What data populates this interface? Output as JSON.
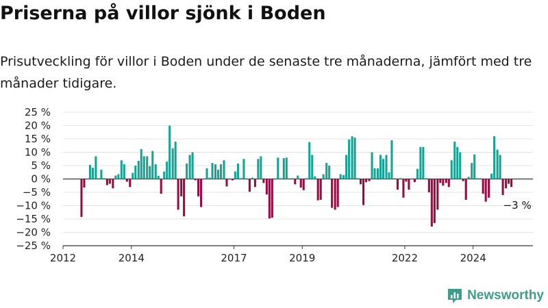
{
  "title": "Priserna på villor sjönk i Boden",
  "subtitle": "Prisutveckling för villor i Boden under de senaste tre månaderna, jämfört med tre månader tidigare.",
  "brand": {
    "name": "Newsworthy",
    "color": "#3f9c8c"
  },
  "chart_data": {
    "type": "bar",
    "ylim": [
      -25,
      25
    ],
    "yticks": [
      25,
      20,
      15,
      10,
      5,
      0,
      -5,
      -10,
      -15,
      -20,
      -25
    ],
    "ytick_labels": [
      "25 %",
      "20 %",
      "15 %",
      "10 %",
      "5 %",
      "0 %",
      "−5 %",
      "−10 %",
      "−15 %",
      "−20 %",
      "−25 %"
    ],
    "xlim": [
      2012.0,
      2025.75
    ],
    "xticks": [
      2012,
      2014,
      2017,
      2019,
      2022,
      2024
    ],
    "xtick_labels": [
      "2012",
      "2014",
      "2017",
      "2019",
      "2022",
      "2024"
    ],
    "grid": true,
    "positive_color": "#16a394",
    "negative_color": "#9b0a43",
    "annotation": {
      "text": "−3 %",
      "x": 2025.0,
      "y": -3
    },
    "x": [
      2012.54,
      2012.62,
      2012.79,
      2012.87,
      2012.96,
      2013.04,
      2013.12,
      2013.21,
      2013.29,
      2013.37,
      2013.46,
      2013.54,
      2013.62,
      2013.71,
      2013.79,
      2013.87,
      2013.96,
      2014.04,
      2014.12,
      2014.21,
      2014.29,
      2014.37,
      2014.46,
      2014.54,
      2014.62,
      2014.71,
      2014.79,
      2014.87,
      2014.96,
      2015.04,
      2015.12,
      2015.21,
      2015.29,
      2015.37,
      2015.46,
      2015.54,
      2015.62,
      2015.71,
      2015.79,
      2015.87,
      2015.96,
      2016.04,
      2016.21,
      2016.29,
      2016.37,
      2016.46,
      2016.54,
      2016.62,
      2016.71,
      2016.79,
      2016.96,
      2017.04,
      2017.12,
      2017.21,
      2017.29,
      2017.46,
      2017.54,
      2017.62,
      2017.71,
      2017.79,
      2017.87,
      2017.96,
      2018.04,
      2018.12,
      2018.29,
      2018.37,
      2018.46,
      2018.54,
      2018.71,
      2018.79,
      2018.87,
      2018.96,
      2019.04,
      2019.12,
      2019.21,
      2019.29,
      2019.37,
      2019.46,
      2019.54,
      2019.62,
      2019.71,
      2019.79,
      2019.87,
      2019.96,
      2020.04,
      2020.12,
      2020.21,
      2020.29,
      2020.37,
      2020.46,
      2020.54,
      2020.62,
      2020.71,
      2020.79,
      2020.87,
      2020.96,
      2021.04,
      2021.12,
      2021.21,
      2021.29,
      2021.37,
      2021.46,
      2021.54,
      2021.62,
      2021.71,
      2021.79,
      2021.87,
      2021.96,
      2022.04,
      2022.12,
      2022.29,
      2022.37,
      2022.46,
      2022.54,
      2022.62,
      2022.71,
      2022.79,
      2022.87,
      2022.96,
      2023.04,
      2023.12,
      2023.21,
      2023.29,
      2023.37,
      2023.46,
      2023.54,
      2023.62,
      2023.71,
      2023.79,
      2023.87,
      2023.96,
      2024.04,
      2024.12,
      2024.21,
      2024.29,
      2024.37,
      2024.46,
      2024.54,
      2024.62,
      2024.71,
      2024.79,
      2024.87,
      2024.96,
      2025.04,
      2025.12
    ],
    "values": [
      -14.2,
      -3.2,
      5.3,
      4.2,
      8.5,
      0.3,
      3.5,
      0.3,
      -2.3,
      -1.8,
      -3.5,
      1.3,
      1.8,
      7.0,
      5.5,
      -1.0,
      -3.0,
      2.3,
      5.0,
      6.8,
      11.2,
      8.5,
      8.5,
      4.8,
      10.5,
      5.5,
      1.2,
      -5.5,
      2.8,
      6.5,
      20.0,
      11.5,
      14.0,
      -11.5,
      -6.5,
      -14.0,
      5.8,
      9.0,
      10.0,
      -0.5,
      -6.5,
      -10.5,
      4.0,
      0.5,
      6.0,
      5.5,
      3.5,
      5.5,
      7.0,
      -2.8,
      -0.5,
      2.8,
      5.8,
      0.3,
      7.5,
      -4.8,
      0.5,
      -3.0,
      7.5,
      8.5,
      -1.5,
      -5.8,
      -14.8,
      -14.5,
      8.0,
      0.3,
      7.8,
      8.0,
      0.3,
      -2.0,
      1.3,
      -3.2,
      -4.2,
      0.3,
      13.8,
      9.0,
      1.0,
      -8.0,
      -7.8,
      1.8,
      6.0,
      5.0,
      -10.8,
      -11.5,
      -10.5,
      1.8,
      1.5,
      9.0,
      14.8,
      16.0,
      15.5,
      0.3,
      -2.0,
      -9.8,
      -1.2,
      -0.8,
      10.0,
      4.0,
      4.0,
      9.0,
      7.5,
      9.0,
      2.5,
      14.5,
      0.3,
      -4.0,
      0.3,
      -7.0,
      -1.0,
      -4.0,
      -1.2,
      3.8,
      12.0,
      12.0,
      0.3,
      -5.0,
      -17.8,
      -16.5,
      -11.5,
      -1.5,
      -2.5,
      -1.5,
      -3.0,
      7.0,
      14.0,
      12.0,
      10.0,
      -0.8,
      -7.8,
      0.8,
      6.0,
      9.2,
      0.3,
      0.3,
      -5.5,
      -8.5,
      -7.0,
      2.0,
      16.0,
      11.0,
      9.0,
      -6.0,
      -3.5,
      -1.8,
      -3.0
    ]
  }
}
